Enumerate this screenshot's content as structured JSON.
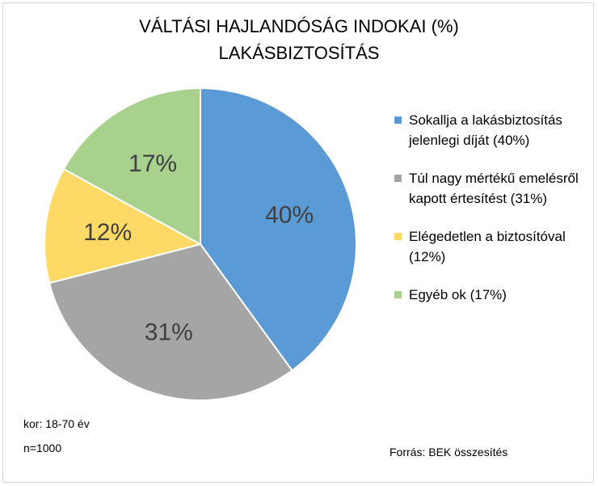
{
  "chart_data": {
    "type": "pie",
    "title_lines": [
      "VÁLTÁSI HAJLANDÓSÁG INDOKAI (%)",
      "LAKÁSBIZTOSÍTÁS"
    ],
    "slices": [
      {
        "legend": "Sokallja a lakásbiztosítás jelenlegi díját (40%)",
        "value": 40,
        "label": "40%",
        "color": "#5B9BD5"
      },
      {
        "legend": "Túl nagy mértékű emelésről kapott értesítést (31%)",
        "value": 31,
        "label": "31%",
        "color": "#A5A5A5"
      },
      {
        "legend": "Elégedetlen a biztosítóval (12%)",
        "value": 12,
        "label": "12%",
        "color": "#FFD966"
      },
      {
        "legend": "Egyéb ok (17%)",
        "value": 17,
        "label": "17%",
        "color": "#A9D18E"
      }
    ],
    "legend_position": "right"
  },
  "notes": {
    "age": "kor: 18-70 év",
    "sample": "n=1000",
    "source": "Forrás: BEK összesítés"
  }
}
